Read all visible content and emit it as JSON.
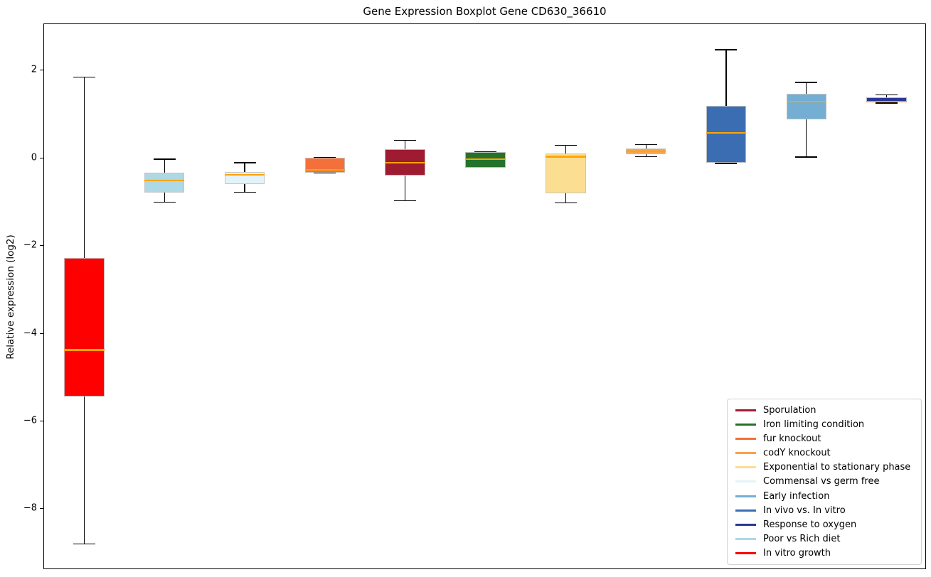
{
  "chart_data": {
    "type": "boxplot",
    "title": "Gene Expression Boxplot Gene CD630_36610",
    "xlabel": "",
    "ylabel": "Relative expression (log2)",
    "ylim": [
      -9.39,
      3.06
    ],
    "grid": false,
    "legend_position": "lower right",
    "median_color": "#FFA500",
    "yticks": [
      {
        "value": 2,
        "label": "2"
      },
      {
        "value": 0,
        "label": "0"
      },
      {
        "value": -2,
        "label": "−2"
      },
      {
        "value": -4,
        "label": "−4"
      },
      {
        "value": -6,
        "label": "−6"
      },
      {
        "value": -8,
        "label": "−8"
      }
    ],
    "boxes": [
      {
        "name": "In vitro growth",
        "color": "#FF0000",
        "whislo": -8.8,
        "q1": -5.43,
        "med": -4.37,
        "q3": -2.28,
        "whishi": 1.85
      },
      {
        "name": "Poor vs Rich diet",
        "color": "#ADD8E6",
        "whislo": -1.0,
        "q1": -0.78,
        "med": -0.51,
        "q3": -0.32,
        "whishi": -0.02
      },
      {
        "name": "Commensal vs germ free",
        "color": "#E3F3FA",
        "whislo": -0.77,
        "q1": -0.59,
        "med": -0.38,
        "q3": -0.31,
        "whishi": -0.1
      },
      {
        "name": "fur knockout",
        "color": "#F3703A",
        "whislo": -0.33,
        "q1": -0.33,
        "med": -0.26,
        "q3": 0.02,
        "whishi": 0.02
      },
      {
        "name": "Sporulation",
        "color": "#9E1B32",
        "whislo": -0.97,
        "q1": -0.39,
        "med": -0.1,
        "q3": 0.21,
        "whishi": 0.41
      },
      {
        "name": "Iron limiting condition",
        "color": "#26722B",
        "whislo": -0.21,
        "q1": -0.21,
        "med": -0.02,
        "q3": 0.15,
        "whishi": 0.15
      },
      {
        "name": "Exponential to stationary phase",
        "color": "#FBDE92",
        "whislo": -1.02,
        "q1": -0.8,
        "med": 0.04,
        "q3": 0.11,
        "whishi": 0.3
      },
      {
        "name": "codY knockout",
        "color": "#F9A34A",
        "whislo": 0.04,
        "q1": 0.1,
        "med": 0.16,
        "q3": 0.23,
        "whishi": 0.31
      },
      {
        "name": "In vivo vs. In vitro",
        "color": "#3B6DB3",
        "whislo": -0.12,
        "q1": -0.1,
        "med": 0.58,
        "q3": 1.19,
        "whishi": 2.48
      },
      {
        "name": "Early infection",
        "color": "#74AED3",
        "whislo": 0.03,
        "q1": 0.89,
        "med": 1.29,
        "q3": 1.47,
        "whishi": 1.73
      },
      {
        "name": "Response to oxygen",
        "color": "#2A3795",
        "whislo": 1.26,
        "q1": 1.28,
        "med": 1.29,
        "q3": 1.39,
        "whishi": 1.45
      }
    ],
    "legend": [
      {
        "label": "Sporulation",
        "color": "#9E1B32"
      },
      {
        "label": "Iron limiting condition",
        "color": "#26722B"
      },
      {
        "label": "fur knockout",
        "color": "#F3703A"
      },
      {
        "label": "codY knockout",
        "color": "#F9A34A"
      },
      {
        "label": "Exponential to stationary phase",
        "color": "#FBDE92"
      },
      {
        "label": "Commensal vs germ free",
        "color": "#E3F3FA"
      },
      {
        "label": "Early infection",
        "color": "#74AED3"
      },
      {
        "label": "In vivo vs. In vitro",
        "color": "#3B6DB3"
      },
      {
        "label": "Response to oxygen",
        "color": "#2A3795"
      },
      {
        "label": "Poor vs Rich diet",
        "color": "#ADD8E6"
      },
      {
        "label": "In vitro growth",
        "color": "#FF0000"
      }
    ]
  }
}
